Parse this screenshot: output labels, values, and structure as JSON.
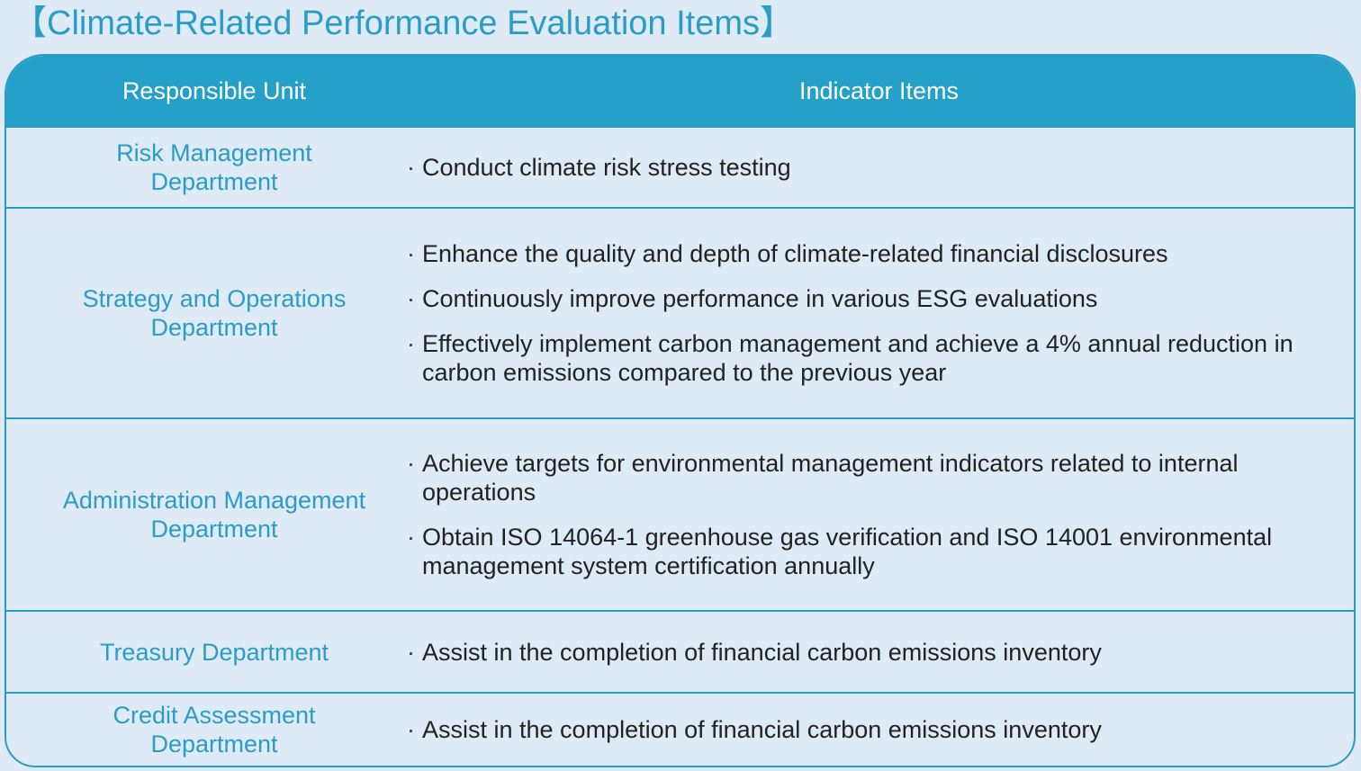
{
  "title": "【Climate-Related Performance Evaluation Items】",
  "header": {
    "unit": "Responsible Unit",
    "items": "Indicator Items"
  },
  "rows": [
    {
      "unit": "Risk Management\nDepartment",
      "items": [
        "Conduct climate risk stress testing"
      ]
    },
    {
      "unit": "Strategy and Operations\nDepartment",
      "items": [
        "Enhance the quality and depth of climate-related financial disclosures",
        "Continuously improve performance in various ESG evaluations",
        "Effectively implement carbon management and achieve a 4% annual reduction in carbon emissions compared to the previous year"
      ]
    },
    {
      "unit": "Administration Management\nDepartment",
      "items": [
        "Achieve targets for environmental management indicators related to internal operations",
        "Obtain ISO 14064-1 greenhouse gas verification and ISO 14001 environmental management system certification annually"
      ]
    },
    {
      "unit": "Treasury Department",
      "items": [
        "Assist in the completion of financial carbon emissions inventory"
      ]
    },
    {
      "unit": "Credit Assessment\nDepartment",
      "items": [
        "Assist in the completion of financial carbon emissions inventory"
      ]
    }
  ],
  "bullet": "·",
  "colors": {
    "accent": "#2a9cc8",
    "header_bg": "#24a0c9",
    "page_bg": "#deeaf5",
    "text": "#222222"
  }
}
